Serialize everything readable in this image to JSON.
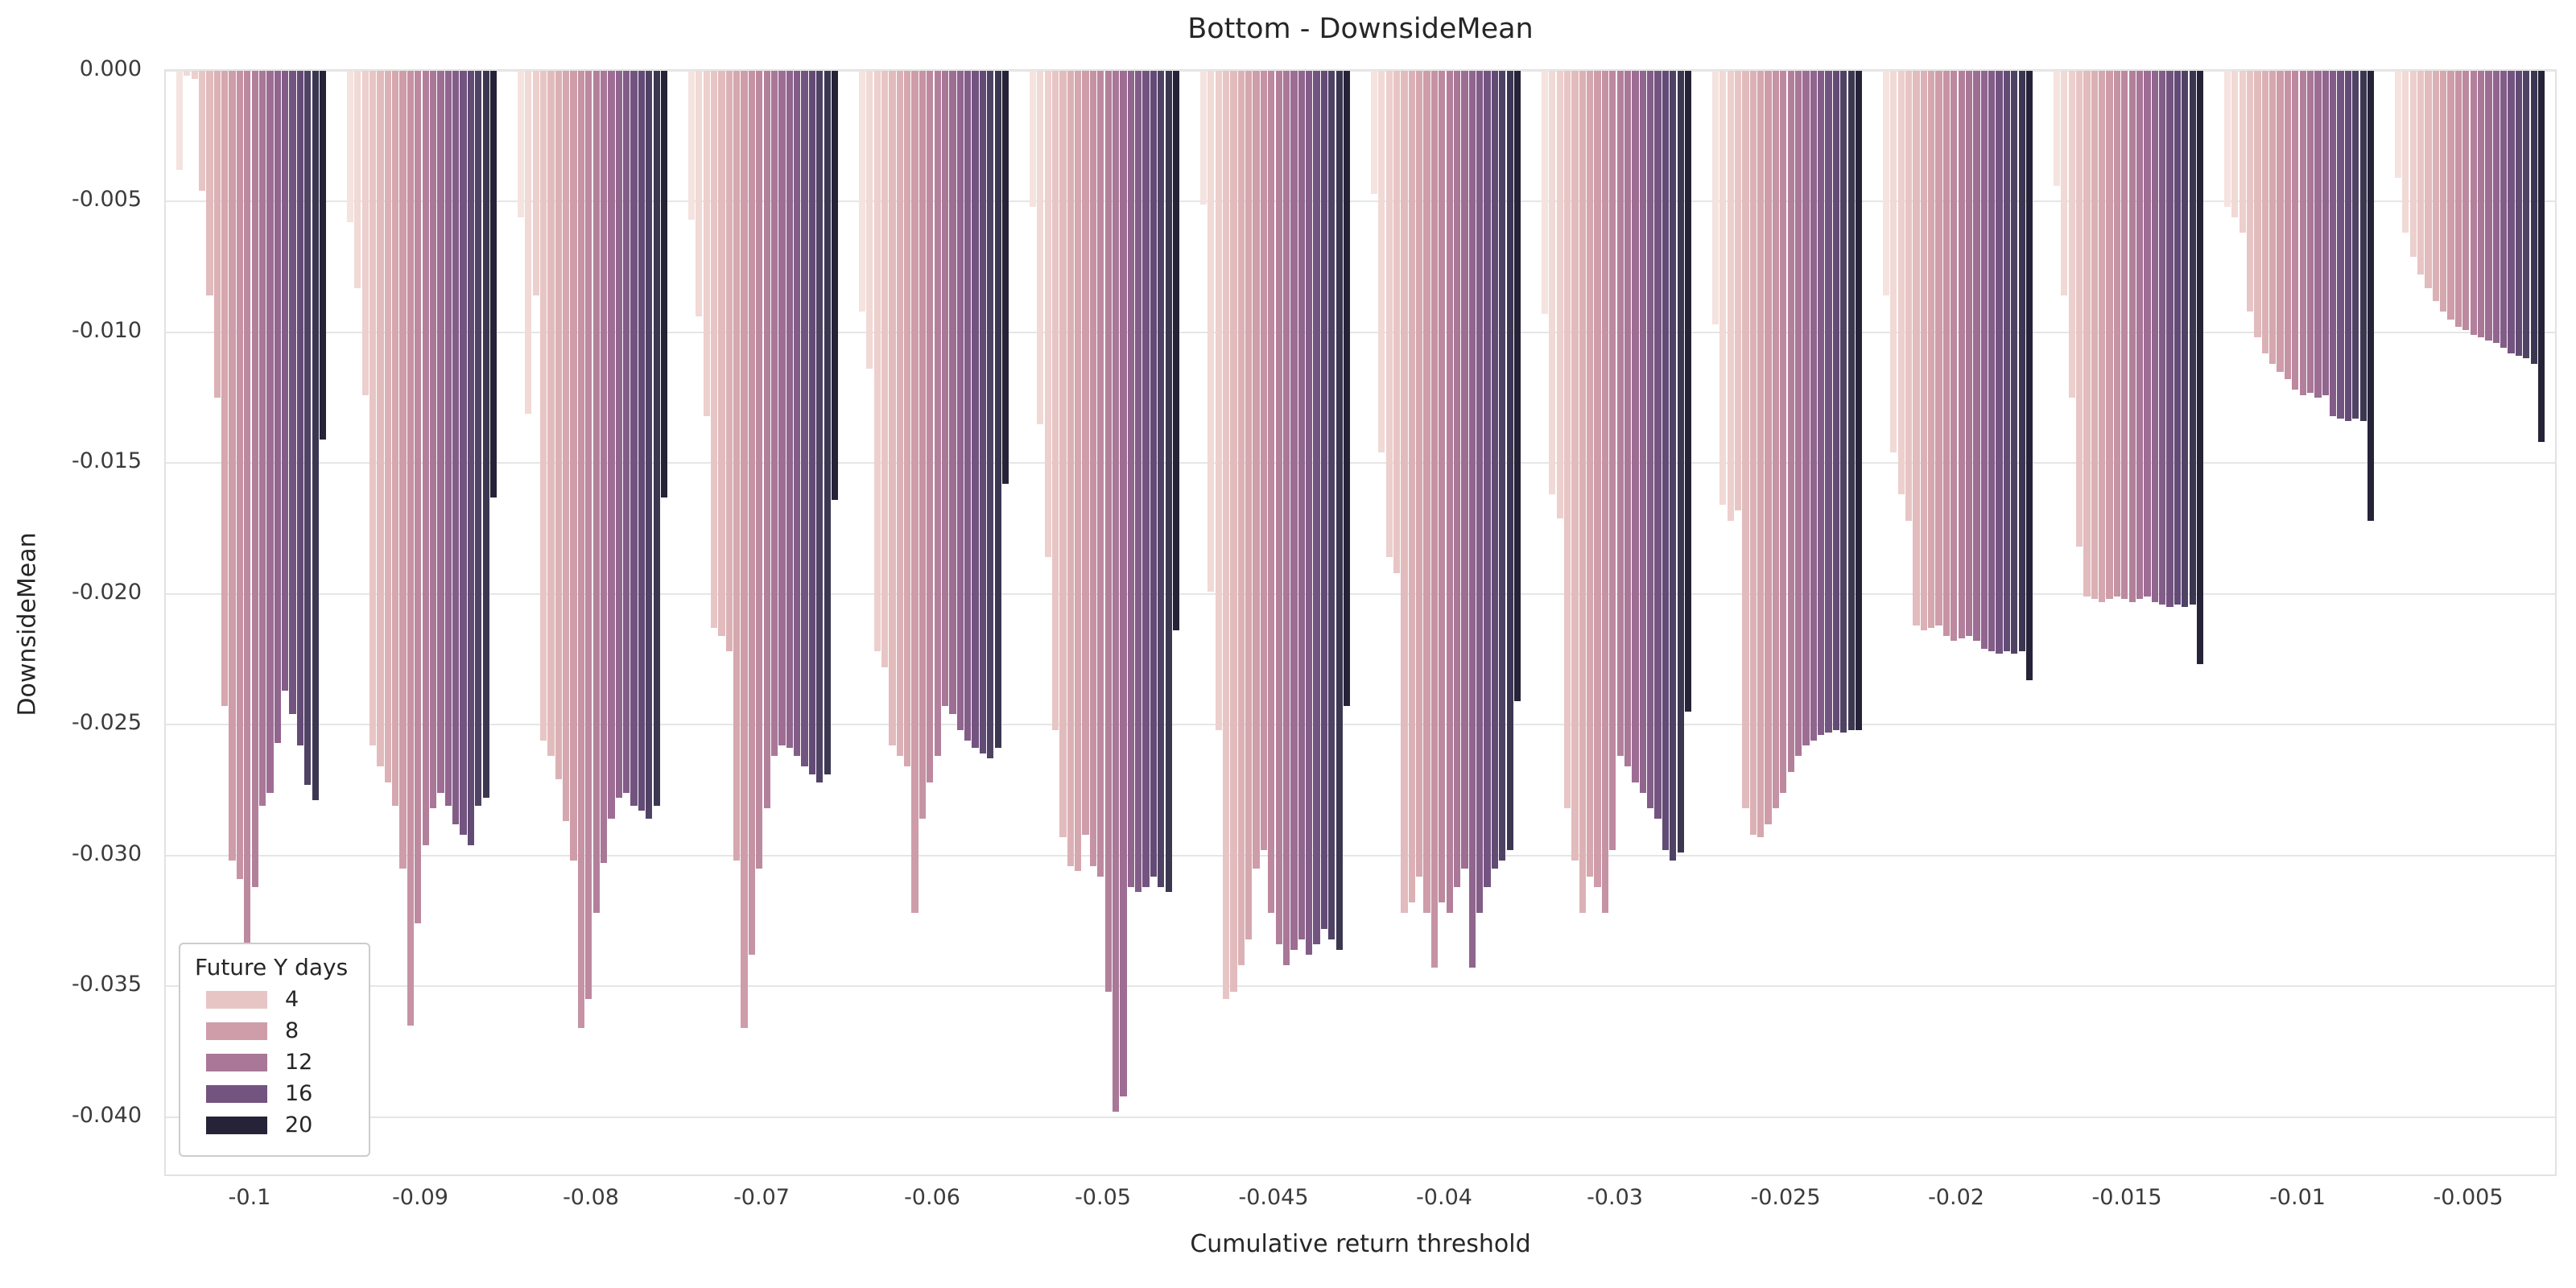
{
  "title": "Bottom - DownsideMean",
  "axes": {
    "xlabel": "Cumulative return threshold",
    "ylabel": "DownsideMean"
  },
  "legend": {
    "title": "Future Y days",
    "entries": [
      {
        "label": "4",
        "color": "#e8c5c5"
      },
      {
        "label": "8",
        "color": "#ce9da9"
      },
      {
        "label": "12",
        "color": "#a97797"
      },
      {
        "label": "16",
        "color": "#735480"
      },
      {
        "label": "20",
        "color": "#262338"
      }
    ]
  },
  "chart_data": {
    "type": "bar",
    "title": "Bottom - DownsideMean",
    "xlabel": "Cumulative return threshold",
    "ylabel": "DownsideMean",
    "grid": true,
    "legend_position": "lower left",
    "legend_title": "Future Y days",
    "legend_shown_levels": [
      4,
      8,
      12,
      16,
      20
    ],
    "hue_levels": [
      1,
      2,
      3,
      4,
      5,
      6,
      7,
      8,
      9,
      10,
      11,
      12,
      13,
      14,
      15,
      16,
      17,
      18,
      19,
      20
    ],
    "ylim": [
      -0.0422,
      0
    ],
    "yticks": [
      0,
      -0.005,
      -0.01,
      -0.015,
      -0.02,
      -0.025,
      -0.03,
      -0.035,
      -0.04
    ],
    "ytick_labels": [
      "0.000",
      "-0.005",
      "-0.010",
      "-0.015",
      "-0.020",
      "-0.025",
      "-0.030",
      "-0.035",
      "-0.040"
    ],
    "categories": [
      "-0.1",
      "-0.09",
      "-0.08",
      "-0.07",
      "-0.06",
      "-0.05",
      "-0.045",
      "-0.04",
      "-0.03",
      "-0.025",
      "-0.02",
      "-0.015",
      "-0.01",
      "-0.005"
    ],
    "palette": [
      "#f5e3e0",
      "#f1d9d6",
      "#edcfcd",
      "#e8c5c5",
      "#e2bbbd",
      "#dcb1b6",
      "#d5a7af",
      "#ce9da9",
      "#c693a4",
      "#bd899f",
      "#b3809b",
      "#a97797",
      "#9d6d93",
      "#90658e",
      "#825d88",
      "#735480",
      "#624b75",
      "#504265",
      "#3c3751",
      "#262338"
    ],
    "groups": [
      {
        "category": "-0.1",
        "values": [
          -0.0038,
          -0.0002,
          -0.0003,
          -0.0046,
          -0.0086,
          -0.0125,
          -0.0243,
          -0.0302,
          -0.0309,
          -0.0355,
          -0.0312,
          -0.0281,
          -0.0276,
          -0.0257,
          -0.0237,
          -0.0246,
          -0.0258,
          -0.0273,
          -0.0279,
          -0.0141
        ]
      },
      {
        "category": "-0.09",
        "values": [
          -0.0058,
          -0.0083,
          -0.0124,
          -0.0258,
          -0.0266,
          -0.0272,
          -0.0281,
          -0.0305,
          -0.0365,
          -0.0326,
          -0.0296,
          -0.0282,
          -0.0276,
          -0.0281,
          -0.0288,
          -0.0292,
          -0.0296,
          -0.0281,
          -0.0278,
          -0.0163
        ]
      },
      {
        "category": "-0.08",
        "values": [
          -0.0056,
          -0.0131,
          -0.0086,
          -0.0256,
          -0.0262,
          -0.0271,
          -0.0287,
          -0.0302,
          -0.0366,
          -0.0355,
          -0.0322,
          -0.0303,
          -0.0286,
          -0.0278,
          -0.0276,
          -0.0281,
          -0.0283,
          -0.0286,
          -0.0281,
          -0.0163
        ]
      },
      {
        "category": "-0.07",
        "values": [
          -0.0057,
          -0.0094,
          -0.0132,
          -0.0213,
          -0.0216,
          -0.0222,
          -0.0302,
          -0.0366,
          -0.0338,
          -0.0305,
          -0.0282,
          -0.0262,
          -0.0258,
          -0.0259,
          -0.0262,
          -0.0266,
          -0.0269,
          -0.0272,
          -0.0269,
          -0.0164
        ]
      },
      {
        "category": "-0.06",
        "values": [
          -0.0092,
          -0.0114,
          -0.0222,
          -0.0228,
          -0.0258,
          -0.0262,
          -0.0266,
          -0.0322,
          -0.0286,
          -0.0272,
          -0.0262,
          -0.0243,
          -0.0246,
          -0.0252,
          -0.0256,
          -0.0259,
          -0.0261,
          -0.0263,
          -0.0259,
          -0.0158
        ]
      },
      {
        "category": "-0.05",
        "values": [
          -0.0052,
          -0.0135,
          -0.0186,
          -0.0252,
          -0.0293,
          -0.0304,
          -0.0306,
          -0.0292,
          -0.0304,
          -0.0308,
          -0.0352,
          -0.0398,
          -0.0392,
          -0.0312,
          -0.0314,
          -0.0312,
          -0.0308,
          -0.0312,
          -0.0314,
          -0.0214
        ]
      },
      {
        "category": "-0.045",
        "values": [
          -0.0051,
          -0.0199,
          -0.0252,
          -0.0355,
          -0.0352,
          -0.0342,
          -0.0332,
          -0.0305,
          -0.0298,
          -0.0322,
          -0.0334,
          -0.0342,
          -0.0336,
          -0.0332,
          -0.0338,
          -0.0334,
          -0.0328,
          -0.0332,
          -0.0336,
          -0.0243
        ]
      },
      {
        "category": "-0.04",
        "values": [
          -0.0047,
          -0.0146,
          -0.0186,
          -0.0192,
          -0.0322,
          -0.0318,
          -0.0308,
          -0.0322,
          -0.0343,
          -0.0318,
          -0.0322,
          -0.0312,
          -0.0305,
          -0.0343,
          -0.0322,
          -0.0312,
          -0.0305,
          -0.0302,
          -0.0298,
          -0.0241
        ]
      },
      {
        "category": "-0.03",
        "values": [
          -0.0093,
          -0.0162,
          -0.0171,
          -0.0282,
          -0.0302,
          -0.0322,
          -0.0308,
          -0.0312,
          -0.0322,
          -0.0298,
          -0.0262,
          -0.0266,
          -0.0272,
          -0.0276,
          -0.0282,
          -0.0286,
          -0.0298,
          -0.0302,
          -0.0299,
          -0.0245
        ]
      },
      {
        "category": "-0.025",
        "values": [
          -0.0097,
          -0.0166,
          -0.0172,
          -0.0168,
          -0.0282,
          -0.0292,
          -0.0293,
          -0.0288,
          -0.0282,
          -0.0276,
          -0.0268,
          -0.0262,
          -0.0258,
          -0.0256,
          -0.0254,
          -0.0253,
          -0.0252,
          -0.0253,
          -0.0252,
          -0.0252
        ]
      },
      {
        "category": "-0.02",
        "values": [
          -0.0086,
          -0.0146,
          -0.0162,
          -0.0172,
          -0.0212,
          -0.0214,
          -0.0213,
          -0.0212,
          -0.0216,
          -0.0218,
          -0.0217,
          -0.0216,
          -0.0218,
          -0.0221,
          -0.0222,
          -0.0223,
          -0.0222,
          -0.0223,
          -0.0222,
          -0.0233
        ]
      },
      {
        "category": "-0.015",
        "values": [
          -0.0044,
          -0.0086,
          -0.0125,
          -0.0182,
          -0.0201,
          -0.0202,
          -0.0203,
          -0.0202,
          -0.0201,
          -0.0202,
          -0.0203,
          -0.0202,
          -0.0201,
          -0.0203,
          -0.0204,
          -0.0205,
          -0.0204,
          -0.0205,
          -0.0204,
          -0.0227
        ]
      },
      {
        "category": "-0.01",
        "values": [
          -0.0052,
          -0.0056,
          -0.0062,
          -0.0092,
          -0.0102,
          -0.0108,
          -0.0112,
          -0.0115,
          -0.0118,
          -0.0122,
          -0.0124,
          -0.0123,
          -0.0125,
          -0.0124,
          -0.0132,
          -0.0133,
          -0.0134,
          -0.0133,
          -0.0134,
          -0.0172
        ]
      },
      {
        "category": "-0.005",
        "values": [
          -0.0041,
          -0.0062,
          -0.0071,
          -0.0078,
          -0.0083,
          -0.0088,
          -0.0092,
          -0.0095,
          -0.0098,
          -0.0099,
          -0.0101,
          -0.0102,
          -0.0103,
          -0.0104,
          -0.0106,
          -0.0108,
          -0.0109,
          -0.011,
          -0.0112,
          -0.0142
        ]
      }
    ]
  }
}
